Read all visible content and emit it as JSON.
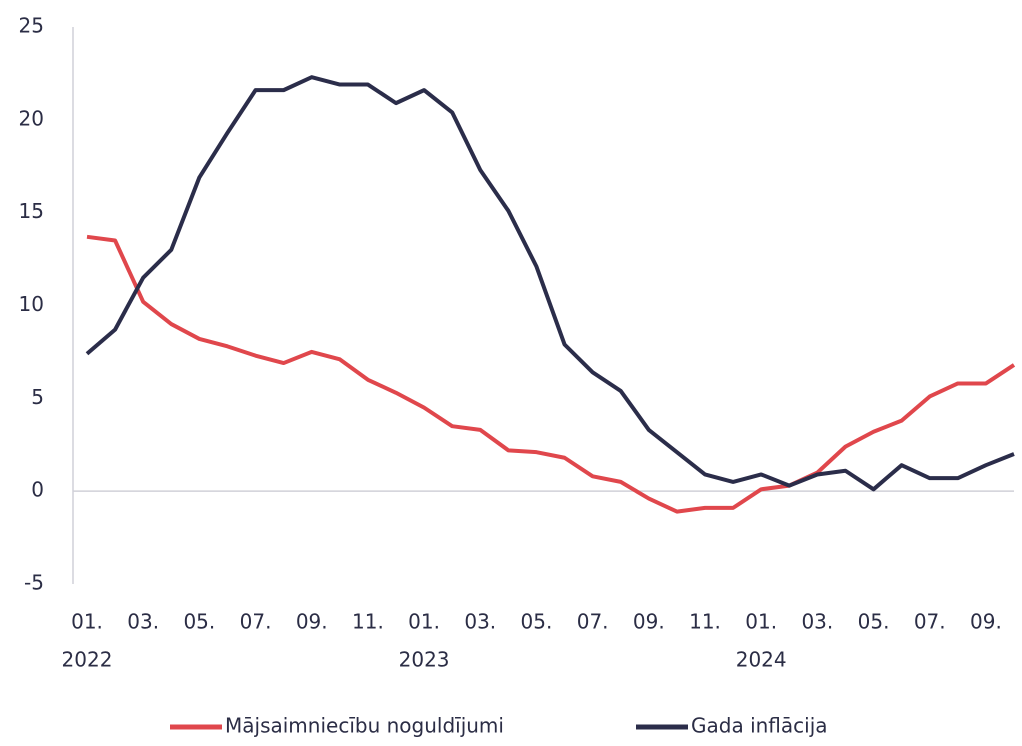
{
  "chart_data": {
    "type": "line",
    "categories": [
      "01.",
      null,
      "03.",
      null,
      "05.",
      null,
      "07.",
      null,
      "09.",
      null,
      "11.",
      null,
      "01.",
      null,
      "03.",
      null,
      "05.",
      null,
      "07.",
      null,
      "09.",
      null,
      "11.",
      null,
      "01.",
      null,
      "03.",
      null,
      "05.",
      null,
      "07.",
      null,
      "09.",
      null
    ],
    "year_labels": [
      "2022",
      null,
      null,
      null,
      null,
      null,
      null,
      null,
      null,
      null,
      null,
      null,
      "2023",
      null,
      null,
      null,
      null,
      null,
      null,
      null,
      null,
      null,
      null,
      null,
      "2024",
      null,
      null,
      null,
      null,
      null,
      null,
      null,
      null,
      null
    ],
    "series": [
      {
        "name": "Mājsaimniecību noguldījumi",
        "color": "#e0474c",
        "values": [
          13.7,
          13.5,
          10.2,
          9.0,
          8.2,
          7.8,
          7.3,
          6.9,
          7.5,
          7.1,
          6.0,
          5.3,
          4.5,
          3.5,
          3.3,
          2.2,
          2.1,
          1.8,
          0.8,
          0.5,
          -0.4,
          -1.1,
          -0.9,
          -0.9,
          0.1,
          0.3,
          1.0,
          2.4,
          3.2,
          3.8,
          5.1,
          5.8,
          5.8,
          6.8
        ]
      },
      {
        "name": "Gada inflācija",
        "color": "#2b2d4a",
        "values": [
          7.4,
          8.7,
          11.5,
          13.0,
          16.9,
          19.3,
          21.6,
          21.6,
          22.3,
          21.9,
          21.9,
          20.9,
          21.6,
          20.4,
          17.3,
          15.1,
          12.1,
          7.9,
          6.4,
          5.4,
          3.3,
          2.1,
          0.9,
          0.5,
          0.9,
          0.3,
          0.9,
          1.1,
          0.1,
          1.4,
          0.7,
          0.7,
          1.4,
          2.0
        ]
      }
    ],
    "ylim": [
      -5,
      25
    ],
    "yticks": [
      -5,
      0,
      5,
      10,
      15,
      20,
      25
    ],
    "zero_line": true,
    "legend": "bottom"
  }
}
